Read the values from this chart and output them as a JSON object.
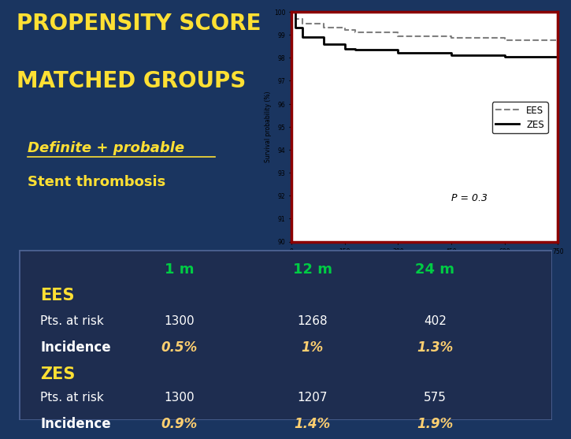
{
  "title_line1": "PROPENSITY SCORE",
  "title_line2": "MATCHED GROUPS",
  "subtitle_line1": "Definite + probable",
  "subtitle_line2": "Stent thrombosis",
  "title_color": "#FFE033",
  "subtitle_color": "#FFE033",
  "bg_color": "#1a3560",
  "table_bg": "#1e2d50",
  "table_border": "#4a6090",
  "header_color": "#00cc44",
  "label_color": "#FFE033",
  "value_color": "#ffffff",
  "incidence_color": "#FFD070",
  "p_value": "P = 0.3",
  "time_points": [
    "1 m",
    "12 m",
    "24 m"
  ],
  "ees_label": "EES",
  "zes_label": "ZES",
  "pts_label": "Pts. at risk",
  "inc_label": "Incidence",
  "ees_pts": [
    "1300",
    "1268",
    "402"
  ],
  "ees_inc": [
    "0.5%",
    "1%",
    "1.3%"
  ],
  "zes_pts": [
    "1300",
    "1207",
    "575"
  ],
  "zes_inc": [
    "0.9%",
    "1.4%",
    "1.9%"
  ],
  "ees_x": [
    0,
    10,
    30,
    90,
    150,
    180,
    300,
    450,
    600,
    750
  ],
  "ees_y": [
    100,
    99.7,
    99.5,
    99.3,
    99.2,
    99.1,
    98.95,
    98.85,
    98.75,
    98.65
  ],
  "zes_x": [
    0,
    10,
    30,
    90,
    150,
    180,
    300,
    450,
    600,
    750
  ],
  "zes_y": [
    100,
    99.3,
    98.9,
    98.6,
    98.4,
    98.35,
    98.2,
    98.1,
    98.05,
    97.95
  ],
  "plot_border_color": "#8b0000",
  "ylim": [
    90,
    100
  ],
  "xlim": [
    0,
    750
  ],
  "xticks": [
    0,
    150,
    300,
    450,
    600,
    750
  ],
  "yticks": [
    90,
    91,
    92,
    93,
    94,
    95,
    96,
    97,
    98,
    99,
    100
  ]
}
